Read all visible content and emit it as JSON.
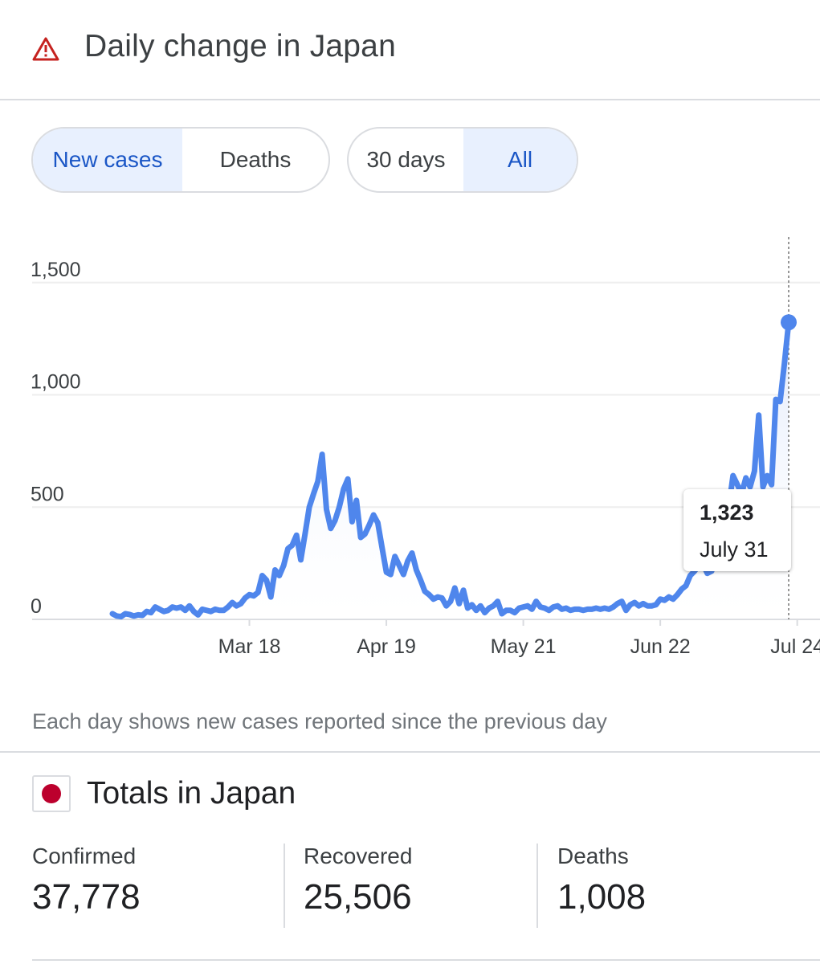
{
  "header": {
    "title": "Daily change in Japan",
    "icon": "warning-triangle-icon",
    "icon_color": "#c5221f"
  },
  "metric_toggle": {
    "options": [
      "New cases",
      "Deaths"
    ],
    "selected": "New cases"
  },
  "range_toggle": {
    "options": [
      "30 days",
      "All"
    ],
    "selected": "All"
  },
  "tooltip": {
    "value": "1,323",
    "date": "July 31"
  },
  "footnote": "Each day shows new cases reported since the previous day",
  "totals": {
    "title": "Totals in Japan",
    "flag_icon": "japan-flag-icon",
    "stats": [
      {
        "label": "Confirmed",
        "value": "37,778"
      },
      {
        "label": "Recovered",
        "value": "25,506"
      },
      {
        "label": "Deaths",
        "value": "1,008"
      }
    ]
  },
  "colors": {
    "line": "#4f86ec",
    "accent": "#1a56c6",
    "selected_bg": "#e8f0fe",
    "flag_red": "#bc002d"
  },
  "chart_data": {
    "type": "line",
    "title": "",
    "xlabel": "",
    "ylabel": "",
    "x_start": "Feb 15",
    "x_end": "Jul 31",
    "x_ticks": [
      "Mar 18",
      "Apr 19",
      "May 21",
      "Jun 22",
      "Jul 24"
    ],
    "y_ticks": [
      0,
      500,
      1000,
      1500
    ],
    "y_tick_labels": [
      "0",
      "500",
      "1,000",
      "1,500"
    ],
    "ylim": [
      0,
      1650
    ],
    "grid": true,
    "highlighted_point": {
      "x": "Jul 31",
      "y": 1323
    },
    "series": [
      {
        "values": [
          25,
          15,
          12,
          25,
          22,
          15,
          20,
          18,
          35,
          30,
          55,
          45,
          35,
          40,
          55,
          50,
          55,
          40,
          60,
          35,
          20,
          45,
          40,
          35,
          45,
          40,
          40,
          55,
          75,
          60,
          70,
          95,
          110,
          105,
          120,
          195,
          175,
          100,
          220,
          195,
          240,
          315,
          330,
          375,
          265,
          380,
          500,
          560,
          615,
          735,
          490,
          405,
          440,
          500,
          580,
          625,
          435,
          530,
          365,
          380,
          420,
          465,
          430,
          320,
          210,
          200,
          280,
          240,
          200,
          260,
          295,
          220,
          175,
          125,
          110,
          90,
          100,
          95,
          60,
          80,
          140,
          70,
          130,
          50,
          65,
          40,
          60,
          30,
          50,
          60,
          80,
          25,
          40,
          40,
          30,
          50,
          55,
          60,
          45,
          80,
          55,
          50,
          40,
          55,
          60,
          45,
          50,
          40,
          45,
          45,
          40,
          45,
          45,
          50,
          45,
          50,
          45,
          55,
          70,
          80,
          40,
          65,
          75,
          60,
          70,
          60,
          60,
          65,
          90,
          85,
          100,
          90,
          110,
          135,
          150,
          195,
          215,
          240,
          245,
          205,
          215,
          380,
          440,
          545,
          500,
          640,
          600,
          560,
          630,
          590,
          660,
          910,
          590,
          640,
          600,
          980,
          970,
          1140,
          1323
        ]
      }
    ]
  }
}
